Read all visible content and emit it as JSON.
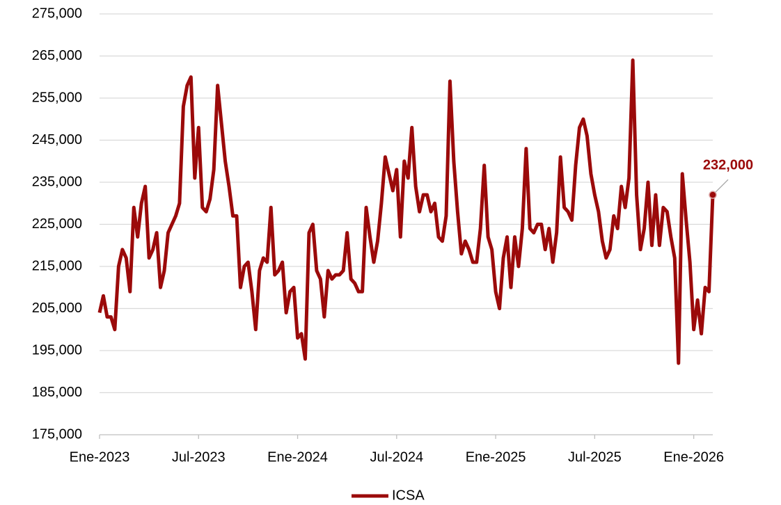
{
  "chart_data": {
    "type": "line",
    "categories": [
      "Ene-2023",
      null,
      null,
      null,
      null,
      null,
      null,
      null,
      null,
      null,
      null,
      null,
      null,
      null,
      null,
      null,
      null,
      null,
      null,
      null,
      null,
      null,
      null,
      null,
      null,
      null,
      "Jul-2023",
      null,
      null,
      null,
      null,
      null,
      null,
      null,
      null,
      null,
      null,
      null,
      null,
      null,
      null,
      null,
      null,
      null,
      null,
      null,
      null,
      null,
      null,
      null,
      null,
      null,
      "Ene-2024",
      null,
      null,
      null,
      null,
      null,
      null,
      null,
      null,
      null,
      null,
      null,
      null,
      null,
      null,
      null,
      null,
      null,
      null,
      null,
      null,
      null,
      null,
      null,
      null,
      null,
      "Jul-2024",
      null,
      null,
      null,
      null,
      null,
      null,
      null,
      null,
      null,
      null,
      null,
      null,
      null,
      null,
      null,
      null,
      null,
      null,
      null,
      null,
      null,
      null,
      null,
      null,
      null,
      "Ene-2025",
      null,
      null,
      null,
      null,
      null,
      null,
      null,
      null,
      null,
      null,
      null,
      null,
      null,
      null,
      null,
      null,
      null,
      null,
      null,
      null,
      null,
      null,
      null,
      null,
      null,
      "Jul-2025",
      null,
      null,
      null,
      null,
      null,
      null,
      null,
      null,
      null,
      null,
      null,
      null,
      null,
      null,
      null,
      null,
      null,
      null,
      null,
      null,
      null,
      null,
      null,
      null,
      null,
      "Ene-2026",
      null,
      null,
      null,
      null,
      null
    ],
    "series": [
      {
        "name": "ICSA",
        "color": "#9b0a0a",
        "values": [
          204000,
          208000,
          203000,
          203000,
          200000,
          215000,
          219000,
          217000,
          209000,
          229000,
          222000,
          230000,
          234000,
          217000,
          219000,
          223000,
          210000,
          214000,
          223000,
          225000,
          227000,
          230000,
          253000,
          258000,
          260000,
          236000,
          248000,
          229000,
          228000,
          231000,
          238000,
          258000,
          249000,
          240000,
          234000,
          227000,
          227000,
          210000,
          215000,
          216000,
          209000,
          200000,
          214000,
          217000,
          216000,
          229000,
          213000,
          214000,
          216000,
          204000,
          209000,
          210000,
          198000,
          199000,
          193000,
          223000,
          225000,
          214000,
          212000,
          203000,
          214000,
          212000,
          213000,
          213000,
          214000,
          223000,
          212000,
          211000,
          209000,
          209000,
          229000,
          222000,
          216000,
          221000,
          230000,
          241000,
          237000,
          233000,
          238000,
          222000,
          240000,
          236000,
          248000,
          234000,
          228000,
          232000,
          232000,
          228000,
          230000,
          222000,
          221000,
          227000,
          259000,
          240000,
          228000,
          218000,
          221000,
          219000,
          216000,
          216000,
          224000,
          239000,
          222000,
          219000,
          209000,
          205000,
          217000,
          222000,
          210000,
          222000,
          215000,
          224000,
          243000,
          224000,
          223000,
          225000,
          225000,
          219000,
          224000,
          216000,
          223000,
          241000,
          229000,
          228000,
          226000,
          239000,
          248000,
          250000,
          246000,
          237000,
          232000,
          228000,
          221000,
          217000,
          219000,
          227000,
          224000,
          234000,
          229000,
          236000,
          264000,
          232000,
          219000,
          224000,
          235000,
          220000,
          232000,
          220000,
          229000,
          228000,
          222000,
          217000,
          192000,
          237000,
          226000,
          216000,
          200000,
          207000,
          199000,
          210000,
          209000,
          232000
        ],
        "value_labels": [
          null,
          null,
          null,
          null,
          null,
          null,
          null,
          null,
          null,
          null,
          null,
          null,
          null,
          null,
          null,
          null,
          null,
          null,
          null,
          null,
          null,
          null,
          null,
          null,
          null,
          null,
          null,
          null,
          null,
          null,
          null,
          null,
          null,
          null,
          null,
          null,
          null,
          null,
          null,
          null,
          null,
          null,
          null,
          null,
          null,
          null,
          null,
          null,
          null,
          null,
          null,
          null,
          null,
          null,
          null,
          null,
          null,
          null,
          null,
          null,
          null,
          null,
          null,
          null,
          null,
          null,
          null,
          null,
          null,
          null,
          null,
          null,
          null,
          null,
          null,
          null,
          null,
          null,
          null,
          null,
          null,
          null,
          null,
          null,
          null,
          null,
          null,
          null,
          null,
          null,
          null,
          null,
          null,
          null,
          null,
          null,
          null,
          null,
          null,
          null,
          null,
          null,
          null,
          null,
          null,
          null,
          null,
          null,
          null,
          null,
          null,
          null,
          null,
          null,
          null,
          null,
          null,
          null,
          null,
          null,
          null,
          null,
          null,
          null,
          null,
          null,
          null,
          null,
          null,
          null,
          null,
          null,
          null,
          null,
          null,
          null,
          null,
          null,
          null,
          null,
          null,
          null,
          null,
          null,
          null,
          null,
          null,
          null,
          null,
          null,
          null,
          null,
          null,
          null,
          null,
          null,
          null,
          null,
          null,
          null,
          null,
          "232,000"
        ]
      }
    ],
    "ylim": [
      175000,
      275000
    ],
    "yticks": [
      {
        "value": 175000,
        "label": "175,000"
      },
      {
        "value": 185000,
        "label": "185,000"
      },
      {
        "value": 195000,
        "label": "195,000"
      },
      {
        "value": 205000,
        "label": "205,000"
      },
      {
        "value": 215000,
        "label": "215,000"
      },
      {
        "value": 225000,
        "label": "225,000"
      },
      {
        "value": 235000,
        "label": "235,000"
      },
      {
        "value": 245000,
        "label": "245,000"
      },
      {
        "value": 255000,
        "label": "255,000"
      },
      {
        "value": 265000,
        "label": "265,000"
      },
      {
        "value": 275000,
        "label": "275,000"
      }
    ],
    "grid": true,
    "legend": "bottom"
  }
}
